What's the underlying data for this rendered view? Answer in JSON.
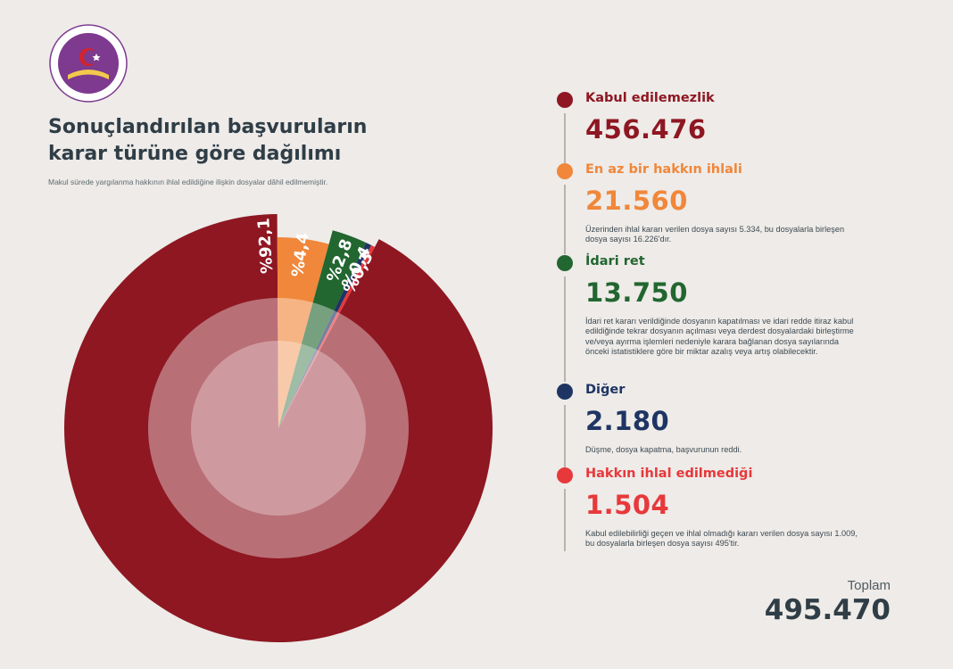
{
  "header": {
    "logo": {
      "top_text": "T.C.",
      "bottom_text": "ANAYASA MAHKEMESİ",
      "color": "#7d3a8e"
    },
    "title_line1": "Sonuçlandırılan başvuruların",
    "title_line2": "karar türüne göre dağılımı",
    "note": "Makul sürede yargılanma hakkının ihlal edildiğine ilişkin dosyalar dâhil edilmemiştir."
  },
  "chart_data": {
    "type": "pie",
    "categories": [
      "Kabul edilemezlik",
      "En az bir hakkın ihlali",
      "İdari ret",
      "Diğer",
      "Hakkın ihlal edilmediği"
    ],
    "values": [
      456476,
      21560,
      13750,
      2180,
      1504
    ],
    "percent_labels": [
      "%92,1",
      "%4,4",
      "%2,8",
      "%0,4",
      "%0,3"
    ],
    "colors": [
      "#8e1722",
      "#f0873a",
      "#226630",
      "#1e3563",
      "#e7383b"
    ],
    "total": 495470
  },
  "legend": [
    {
      "name": "Kabul edilemezlik",
      "value": "456.476",
      "note": "",
      "color": "#8e1722"
    },
    {
      "name": "En az bir hakkın ihlali",
      "value": "21.560",
      "note": "Üzerinden ihlal kararı verilen dosya sayısı 5.334, bu dosyalarla birleşen dosya sayısı 16.226'dır.",
      "color": "#f0873a"
    },
    {
      "name": "İdari ret",
      "value": "13.750",
      "note": "İdari ret kararı verildiğinde dosyanın kapatılması ve idari redde itiraz kabul edildiğinde tekrar dosyanın açılması veya derdest dosyalardaki birleştirme ve/veya ayırma işlemleri nedeniyle karara bağlanan dosya sayılarında önceki istatistiklere göre bir miktar azalış veya artış olabilecektir.",
      "color": "#226630"
    },
    {
      "name": "Diğer",
      "value": "2.180",
      "note": "Düşme, dosya kapatma, başvurunun reddi.",
      "color": "#1e3563"
    },
    {
      "name": "Hakkın ihlal edilmediği",
      "value": "1.504",
      "note": "Kabul edilebilirliği geçen ve ihlal olmadığı kararı verilen dosya sayısı 1.009, bu dosyalarla birleşen dosya sayısı 495'tir.",
      "color": "#e7383b"
    }
  ],
  "total": {
    "label": "Toplam",
    "value": "495.470"
  }
}
